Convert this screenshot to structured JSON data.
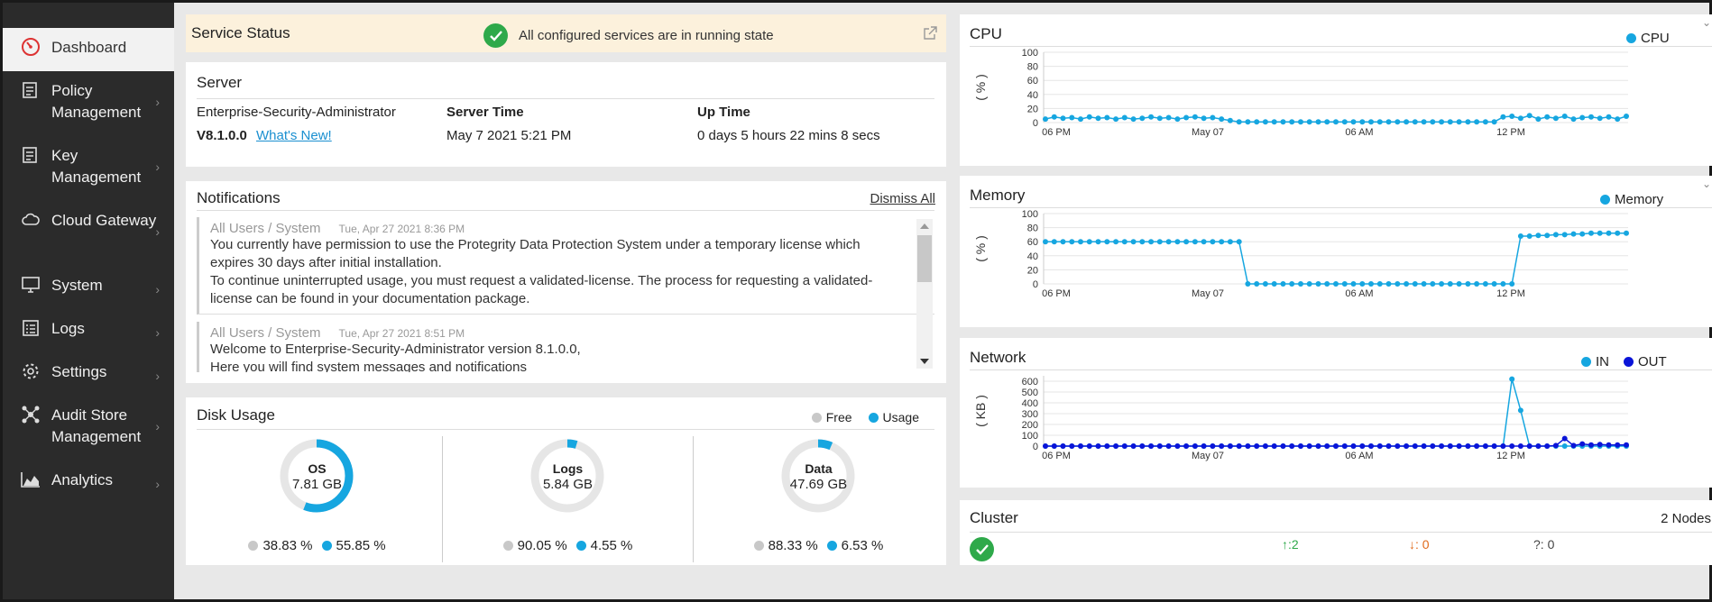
{
  "sidebar": {
    "items": [
      {
        "label": "Dashboard",
        "icon": "dashboard-icon",
        "active": true
      },
      {
        "label": "Policy Management",
        "icon": "policy-icon"
      },
      {
        "label": "Key Management",
        "icon": "key-icon"
      },
      {
        "label": "Cloud Gateway",
        "icon": "cloud-icon"
      },
      {
        "label": "System",
        "icon": "monitor-icon"
      },
      {
        "label": "Logs",
        "icon": "list-icon"
      },
      {
        "label": "Settings",
        "icon": "gear-icon"
      },
      {
        "label": "Audit Store Management",
        "icon": "network-icon"
      },
      {
        "label": "Analytics",
        "icon": "area-chart-icon"
      }
    ]
  },
  "service_status": {
    "title": "Service Status",
    "message": "All configured services are in running state"
  },
  "server": {
    "title": "Server",
    "name": "Enterprise-Security-Administrator",
    "version": "V8.1.0.0",
    "whats_new": "What's New!",
    "server_time_label": "Server Time",
    "server_time": "May 7 2021 5:21 PM",
    "uptime_label": "Up Time",
    "uptime": "0 days 5 hours 22 mins 8 secs"
  },
  "notifications": {
    "title": "Notifications",
    "dismiss": "Dismiss All",
    "items": [
      {
        "source": "All Users / System",
        "time": "Tue, Apr 27 2021 8:36 PM",
        "lines": [
          "You currently have permission to use the Protegrity Data Protection System under a temporary license which",
          "expires 30 days after initial installation.",
          "To continue uninterrupted usage, you must request a validated-license. The process for requesting a validated-",
          "license can be found in your documentation package."
        ]
      },
      {
        "source": "All Users / System",
        "time": "Tue, Apr 27 2021 8:51 PM",
        "lines": [
          "Welcome to Enterprise-Security-Administrator version 8.1.0.0,",
          "Here you will find system messages and notifications"
        ]
      }
    ]
  },
  "disk": {
    "title": "Disk Usage",
    "legend_free": "Free",
    "legend_usage": "Usage",
    "colors": {
      "free": "#c8c8c8",
      "usage": "#16a6e0",
      "ring": "#e6e6e6"
    },
    "volumes": [
      {
        "name": "OS",
        "size": "7.81 GB",
        "free": "38.83 %",
        "usage": "55.85 %",
        "usage_frac": 0.5585
      },
      {
        "name": "Logs",
        "size": "5.84 GB",
        "free": "90.05 %",
        "usage": "4.55 %",
        "usage_frac": 0.0455
      },
      {
        "name": "Data",
        "size": "47.69 GB",
        "free": "88.33 %",
        "usage": "6.53 %",
        "usage_frac": 0.0653
      }
    ]
  },
  "charts": {
    "x_ticks": [
      "06 PM",
      "May 07",
      "06 AM",
      "12 PM"
    ],
    "cpu": {
      "title": "CPU",
      "legend": "CPU",
      "ylabel": "( % )",
      "y_ticks": [
        "100",
        "80",
        "60",
        "40",
        "20",
        "0"
      ],
      "ymax": 100,
      "series": [
        {
          "name": "CPU",
          "color": "#16a6e0",
          "values": [
            5,
            8,
            6,
            7,
            5,
            8,
            6,
            7,
            5,
            7,
            5,
            6,
            8,
            6,
            7,
            5,
            7,
            8,
            6,
            7,
            5,
            3,
            1,
            1,
            1,
            1,
            1,
            1,
            1,
            1,
            1,
            1,
            1,
            1,
            1,
            1,
            1,
            1,
            1,
            1,
            1,
            1,
            1,
            1,
            1,
            1,
            1,
            1,
            1,
            1,
            1,
            1,
            8,
            9,
            6,
            10,
            5,
            8,
            6,
            9,
            5,
            7,
            8,
            6,
            8,
            5,
            9
          ]
        }
      ]
    },
    "memory": {
      "title": "Memory",
      "legend": "Memory",
      "ylabel": "( % )",
      "y_ticks": [
        "100",
        "80",
        "60",
        "40",
        "20",
        "0"
      ],
      "ymax": 100,
      "series": [
        {
          "name": "Memory",
          "color": "#16a6e0",
          "values": [
            60,
            60,
            60,
            60,
            60,
            60,
            60,
            60,
            60,
            60,
            60,
            60,
            60,
            60,
            60,
            60,
            60,
            60,
            60,
            60,
            60,
            60,
            60,
            0,
            0,
            0,
            0,
            0,
            0,
            0,
            0,
            0,
            0,
            0,
            0,
            0,
            0,
            0,
            0,
            0,
            0,
            0,
            0,
            0,
            0,
            0,
            0,
            0,
            0,
            0,
            0,
            0,
            0,
            0,
            68,
            68,
            69,
            69,
            70,
            70,
            71,
            71,
            72,
            72,
            72,
            72,
            72
          ]
        }
      ]
    },
    "network": {
      "title": "Network",
      "ylabel": "( KB )",
      "y_ticks": [
        "600",
        "500",
        "400",
        "300",
        "200",
        "100",
        "0"
      ],
      "ymax": 650,
      "series": [
        {
          "name": "IN",
          "color": "#16a6e0",
          "values": [
            0,
            0,
            0,
            0,
            0,
            0,
            0,
            0,
            0,
            0,
            0,
            0,
            0,
            0,
            0,
            0,
            0,
            0,
            0,
            0,
            0,
            0,
            0,
            0,
            0,
            0,
            0,
            0,
            0,
            0,
            0,
            0,
            0,
            0,
            0,
            0,
            0,
            0,
            0,
            0,
            0,
            0,
            0,
            0,
            0,
            0,
            0,
            0,
            0,
            0,
            0,
            0,
            0,
            620,
            330,
            0,
            0,
            0,
            0,
            0,
            0,
            0,
            0,
            0,
            0,
            0,
            0
          ]
        },
        {
          "name": "OUT",
          "color": "#0a14d8",
          "values": [
            0,
            0,
            0,
            0,
            0,
            0,
            0,
            0,
            0,
            0,
            0,
            0,
            0,
            0,
            0,
            0,
            0,
            0,
            0,
            0,
            0,
            0,
            0,
            0,
            0,
            0,
            0,
            0,
            0,
            0,
            0,
            0,
            0,
            0,
            0,
            0,
            0,
            0,
            0,
            0,
            0,
            0,
            0,
            0,
            0,
            0,
            0,
            0,
            0,
            0,
            0,
            0,
            0,
            0,
            0,
            0,
            0,
            0,
            5,
            70,
            5,
            20,
            10,
            15,
            10,
            10,
            10
          ]
        }
      ]
    }
  },
  "cluster": {
    "title": "Cluster",
    "nodes": "2 Nodes",
    "up": "↑:2",
    "down": "↓: 0",
    "unknown": "?: 0"
  }
}
